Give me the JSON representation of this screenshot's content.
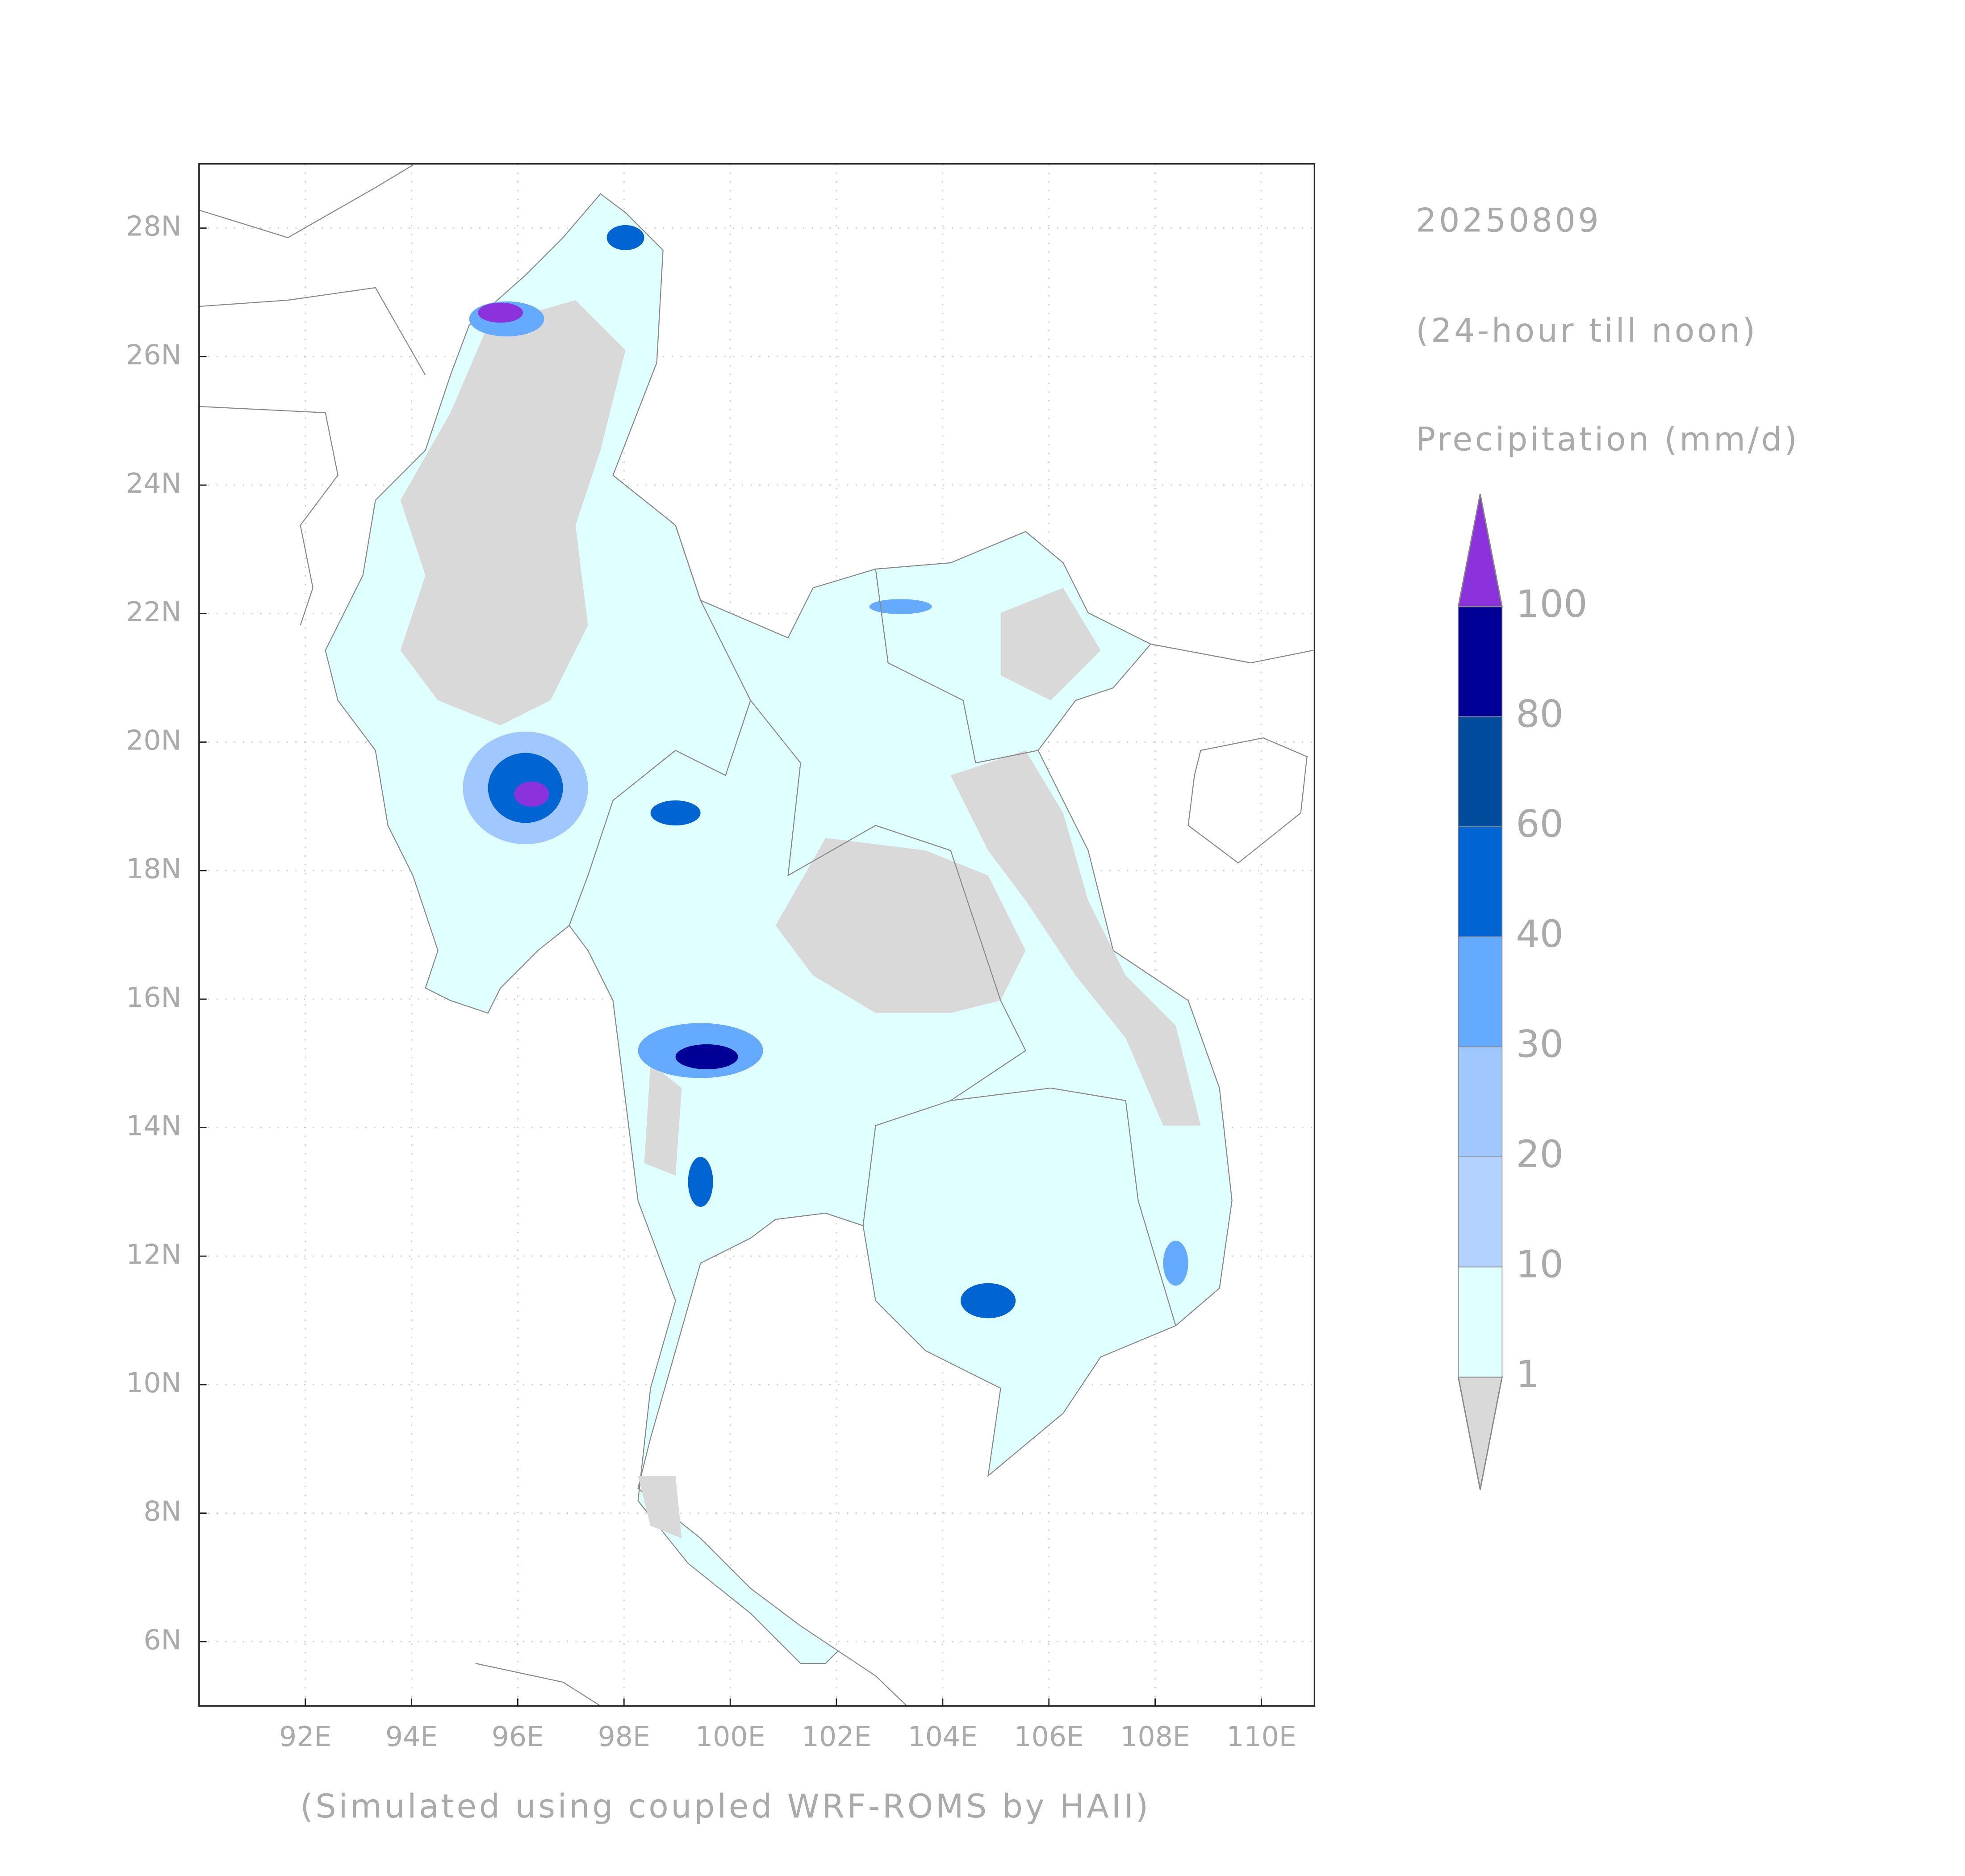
{
  "map": {
    "date": "20250809",
    "period": "(24-hour till noon)",
    "variable": "Precipitation (mm/d)",
    "credit": "(Simulated using coupled WRF-ROMS by HAII)",
    "xlim": [
      90,
      111
    ],
    "ylim": [
      5,
      29
    ],
    "xticks": [
      {
        "value": 92,
        "label": "92E"
      },
      {
        "value": 94,
        "label": "94E"
      },
      {
        "value": 96,
        "label": "96E"
      },
      {
        "value": 98,
        "label": "98E"
      },
      {
        "value": 100,
        "label": "100E"
      },
      {
        "value": 102,
        "label": "102E"
      },
      {
        "value": 104,
        "label": "104E"
      },
      {
        "value": 106,
        "label": "106E"
      },
      {
        "value": 108,
        "label": "108E"
      },
      {
        "value": 110,
        "label": "110E"
      }
    ],
    "yticks": [
      {
        "value": 6,
        "label": "6N"
      },
      {
        "value": 8,
        "label": "8N"
      },
      {
        "value": 10,
        "label": "10N"
      },
      {
        "value": 12,
        "label": "12N"
      },
      {
        "value": 14,
        "label": "14N"
      },
      {
        "value": 16,
        "label": "16N"
      },
      {
        "value": 18,
        "label": "18N"
      },
      {
        "value": 20,
        "label": "20N"
      },
      {
        "value": 22,
        "label": "22N"
      },
      {
        "value": 24,
        "label": "24N"
      },
      {
        "value": 26,
        "label": "26N"
      },
      {
        "value": 28,
        "label": "28N"
      }
    ],
    "grid": true,
    "colorbar": {
      "levels": [
        1,
        10,
        20,
        30,
        40,
        60,
        80,
        100
      ],
      "colors": [
        "#d9d9d9",
        "#e0ffff",
        "#b4d2ff",
        "#a0c8ff",
        "#64aaff",
        "#0064d2",
        "#004b9b",
        "#000096",
        "#8c32dc"
      ]
    }
  }
}
